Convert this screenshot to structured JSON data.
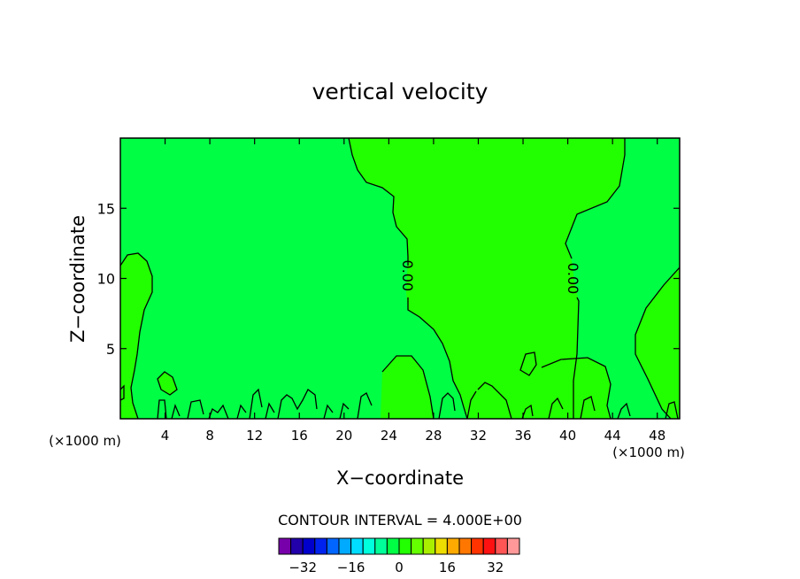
{
  "chart_data": {
    "type": "heatmap",
    "title": "vertical velocity",
    "xlabel": "X−coordinate",
    "ylabel": "Z−coordinate",
    "x_unit_left": "(×1000 m)",
    "x_unit_right": "(×1000 m)",
    "xlim": [
      0,
      50
    ],
    "ylim": [
      0,
      20
    ],
    "x_ticks": [
      4,
      8,
      12,
      16,
      20,
      24,
      28,
      32,
      36,
      40,
      44,
      48
    ],
    "y_ticks": [
      5,
      10,
      15
    ],
    "contour_interval_label": "CONTOUR INTERVAL = 4.000E+00",
    "contour_labels": [
      {
        "text": "0.00",
        "x": 25.6,
        "z": 10.2
      },
      {
        "text": "0.00",
        "x": 40.4,
        "z": 10.0
      }
    ],
    "colors": {
      "background_field": "#00ff44",
      "positive_region": "#22ff00"
    },
    "colorbar": {
      "colors": [
        "#7700aa",
        "#2200aa",
        "#0000cc",
        "#0022ee",
        "#0066ff",
        "#00aaff",
        "#00ddff",
        "#00ffdd",
        "#00ff99",
        "#00ff44",
        "#22ff00",
        "#66ff00",
        "#aaee00",
        "#eedd00",
        "#ffaa00",
        "#ff7700",
        "#ff3300",
        "#ff1111",
        "#ff5555",
        "#ff9999"
      ],
      "tick_labels": [
        "−32",
        "−16",
        "0",
        "16",
        "32"
      ],
      "tick_values": [
        -32,
        -16,
        0,
        16,
        32
      ]
    }
  }
}
